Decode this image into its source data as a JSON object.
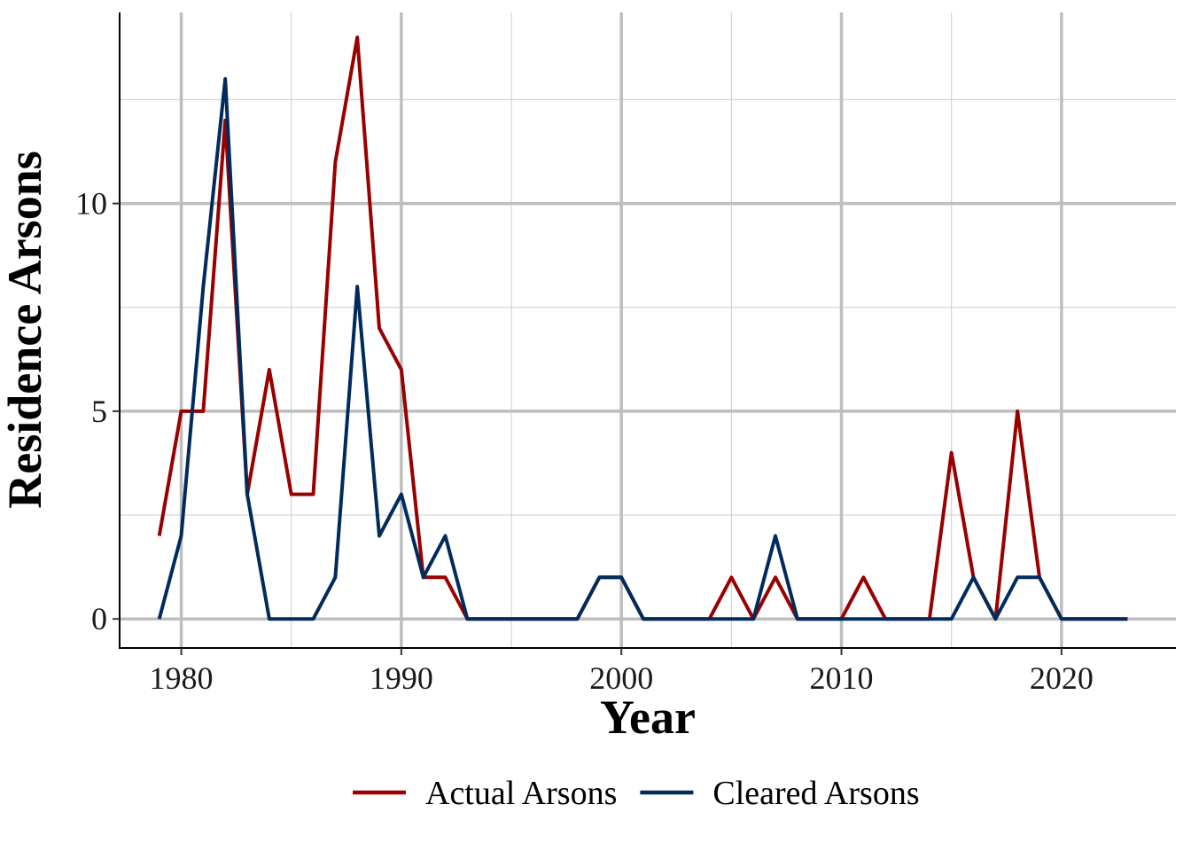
{
  "chart_data": {
    "type": "line",
    "xlabel": "Year",
    "ylabel": "Residence Arsons",
    "xlim": [
      1977.2,
      1925.2
    ],
    "ylim": [
      -0.7,
      14.6
    ],
    "x_ticks": [
      1980,
      1990,
      2000,
      2010,
      2020
    ],
    "x_tick_labels": [
      "1980",
      "1990",
      "2000",
      "2010",
      "2020"
    ],
    "y_ticks": [
      0,
      5,
      10
    ],
    "y_tick_labels": [
      "0",
      "5",
      "10"
    ],
    "grid": true,
    "legend_position": "bottom",
    "x": [
      1979,
      1980,
      1981,
      1982,
      1983,
      1984,
      1985,
      1986,
      1987,
      1988,
      1989,
      1990,
      1991,
      1992,
      1993,
      1994,
      1995,
      1996,
      1997,
      1998,
      1999,
      2000,
      2001,
      2002,
      2003,
      2004,
      2005,
      2006,
      2007,
      2008,
      2009,
      2010,
      2011,
      2012,
      2013,
      2014,
      2015,
      2016,
      2017,
      2018,
      2019,
      2020,
      2021,
      2022,
      2023
    ],
    "series": [
      {
        "name": "Actual Arsons",
        "color": "#990000",
        "values": [
          2,
          5,
          5,
          12,
          3,
          6,
          3,
          3,
          11,
          14,
          7,
          6,
          1,
          1,
          0,
          0,
          0,
          0,
          0,
          0,
          1,
          1,
          0,
          0,
          0,
          0,
          1,
          0,
          1,
          0,
          0,
          0,
          1,
          0,
          0,
          0,
          4,
          1,
          0,
          5,
          1,
          0,
          0,
          0,
          0
        ]
      },
      {
        "name": "Cleared Arsons",
        "color": "#002b5c",
        "values": [
          0,
          2,
          8,
          13,
          3,
          0,
          0,
          0,
          1,
          8,
          2,
          3,
          1,
          2,
          0,
          0,
          0,
          0,
          0,
          0,
          1,
          1,
          0,
          0,
          0,
          0,
          0,
          0,
          2,
          0,
          0,
          0,
          0,
          0,
          0,
          0,
          0,
          1,
          0,
          1,
          1,
          0,
          0,
          0,
          0
        ]
      }
    ]
  }
}
